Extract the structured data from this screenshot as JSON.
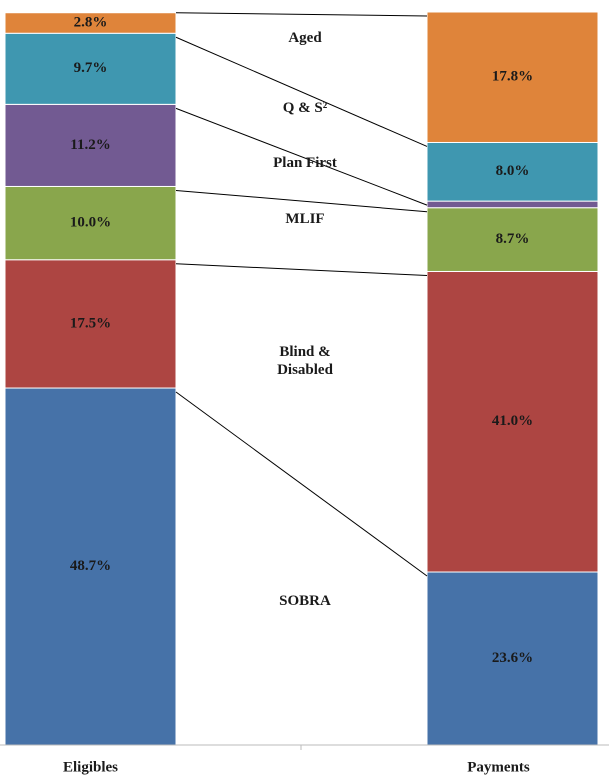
{
  "chart_data": {
    "type": "stacked_bar",
    "categories": [
      "Eligibles",
      "Payments"
    ],
    "ylim": [
      0,
      100
    ],
    "series": [
      {
        "name": "SOBRA",
        "color": "#4672a8",
        "values": [
          48.7,
          23.6
        ],
        "value_labels": [
          "48.7%",
          "23.6%"
        ]
      },
      {
        "name": "Blind & Disabled",
        "color": "#ad4542",
        "values": [
          17.5,
          41.0
        ],
        "value_labels": [
          "17.5%",
          "41.0%"
        ]
      },
      {
        "name": "MLIF",
        "color": "#89a64c",
        "values": [
          10.0,
          8.7
        ],
        "value_labels": [
          "10.0%",
          "8.7%"
        ]
      },
      {
        "name": "Plan First",
        "color": "#725a92",
        "values": [
          11.2,
          0.9
        ],
        "value_labels": [
          "11.2%",
          null
        ]
      },
      {
        "name": "Q & S²",
        "color": "#3f97b0",
        "values": [
          9.7,
          8.0
        ],
        "value_labels": [
          "9.7%",
          "8.0%"
        ]
      },
      {
        "name": "Aged",
        "color": "#df843a",
        "values": [
          2.8,
          17.8
        ],
        "value_labels": [
          "2.8%",
          "17.8%"
        ]
      }
    ]
  }
}
